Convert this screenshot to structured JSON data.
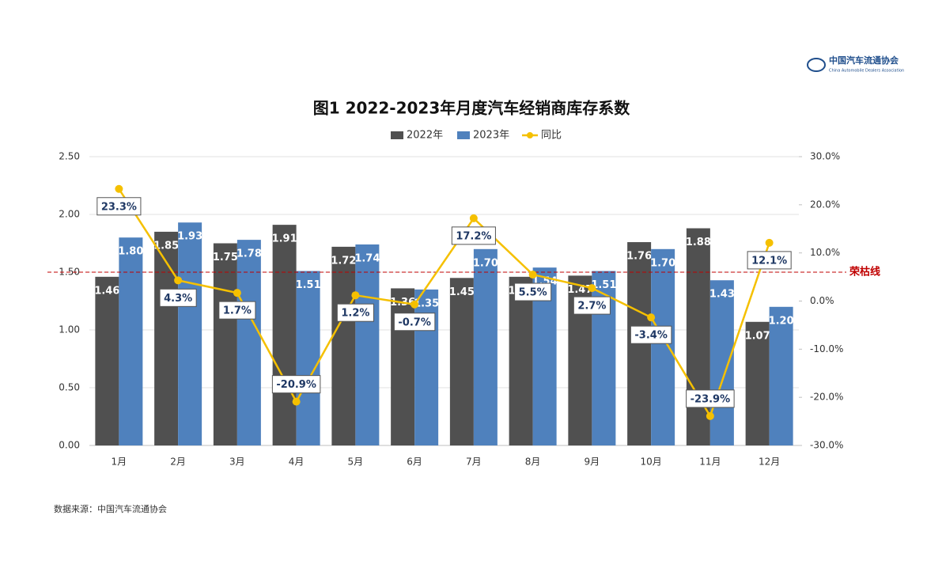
{
  "chart_data": {
    "type": "bar",
    "title": "图1  2022-2023年月度汽车经销商库存系数",
    "categories": [
      "1月",
      "2月",
      "3月",
      "4月",
      "5月",
      "6月",
      "7月",
      "8月",
      "9月",
      "10月",
      "11月",
      "12月"
    ],
    "series": [
      {
        "name": "2022年",
        "color": "#505050",
        "values": [
          1.46,
          1.85,
          1.75,
          1.91,
          1.72,
          1.36,
          1.45,
          1.46,
          1.47,
          1.76,
          1.88,
          1.07
        ],
        "value_labels": [
          "1.46",
          "1.85",
          "1.75",
          "1.91",
          "1.72",
          "1.36",
          "1.45",
          "1.46",
          "1.47",
          "1.76",
          "1.88",
          "1.07"
        ]
      },
      {
        "name": "2023年",
        "color": "#4f81bd",
        "values": [
          1.8,
          1.93,
          1.78,
          1.51,
          1.74,
          1.35,
          1.7,
          1.54,
          1.51,
          1.7,
          1.43,
          1.2
        ],
        "value_labels": [
          "1.80",
          "1.93",
          "1.78",
          "1.51",
          "1.74",
          "1.35",
          "1.70",
          "1.54",
          "1.51",
          "1.70",
          "1.43",
          "1.20"
        ]
      },
      {
        "name": "同比",
        "type": "line",
        "axis": "y2",
        "color": "#f5c000",
        "values": [
          23.3,
          4.3,
          1.7,
          -20.9,
          1.2,
          -0.7,
          17.2,
          5.5,
          2.7,
          -3.4,
          -23.9,
          12.1
        ],
        "value_labels": [
          "23.3%",
          "4.3%",
          "1.7%",
          "-20.9%",
          "1.2%",
          "-0.7%",
          "17.2%",
          "5.5%",
          "2.7%",
          "-3.4%",
          "-23.9%",
          "12.1%"
        ]
      }
    ],
    "ylim": [
      0,
      2.5
    ],
    "yticks": [
      {
        "value": 0,
        "label": "0.00"
      },
      {
        "value": 0.5,
        "label": "0.50"
      },
      {
        "value": 1,
        "label": "1.00"
      },
      {
        "value": 1.5,
        "label": "1.50"
      },
      {
        "value": 2,
        "label": "2.00"
      },
      {
        "value": 2.5,
        "label": "2.50"
      }
    ],
    "y2lim": [
      -30,
      30
    ],
    "y2ticks": [
      {
        "value": -30,
        "label": "-30.0%"
      },
      {
        "value": -20,
        "label": "-20.0%"
      },
      {
        "value": -10,
        "label": "-10.0%"
      },
      {
        "value": 0,
        "label": "0.0%"
      },
      {
        "value": 10,
        "label": "10.0%"
      },
      {
        "value": 20,
        "label": "20.0%"
      },
      {
        "value": 30,
        "label": "30.0%"
      }
    ],
    "grid": true,
    "legend": "top",
    "reference_line": {
      "value": 1.5,
      "label": "荣枯线",
      "color": "#c00000"
    },
    "logo": {
      "name": "中国汽车流通协会",
      "subtitle": "China Automobile Dealers Association"
    },
    "source": "数据来源：中国汽车流通协会"
  }
}
